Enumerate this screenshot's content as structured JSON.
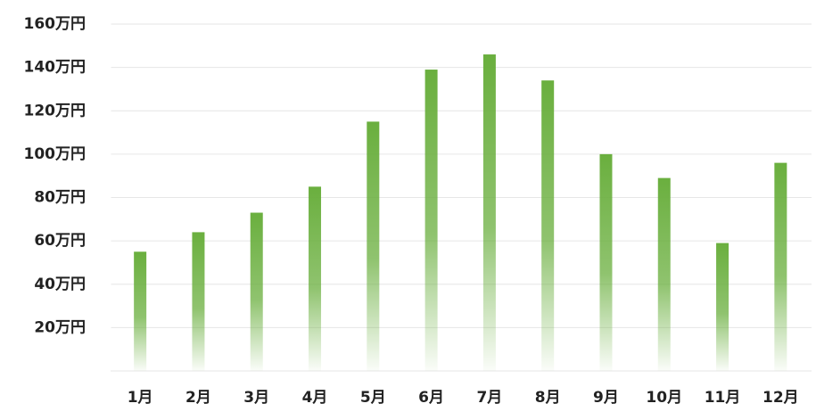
{
  "chart_data": {
    "type": "bar",
    "categories": [
      "1月",
      "2月",
      "3月",
      "4月",
      "5月",
      "6月",
      "7月",
      "8月",
      "9月",
      "10月",
      "11月",
      "12月"
    ],
    "values": [
      55,
      64,
      73,
      85,
      115,
      139,
      146,
      134,
      100,
      89,
      59,
      96
    ],
    "color": "#6aaf3e",
    "ylim": [
      0,
      160
    ],
    "yticks": [
      {
        "value": 20,
        "label": "20万円"
      },
      {
        "value": 40,
        "label": "40万円"
      },
      {
        "value": 60,
        "label": "60万円"
      },
      {
        "value": 80,
        "label": "80万円"
      },
      {
        "value": 100,
        "label": "100万円"
      },
      {
        "value": 120,
        "label": "120万円"
      },
      {
        "value": 140,
        "label": "140万円"
      },
      {
        "value": 160,
        "label": "160万円"
      }
    ],
    "grid": true
  }
}
